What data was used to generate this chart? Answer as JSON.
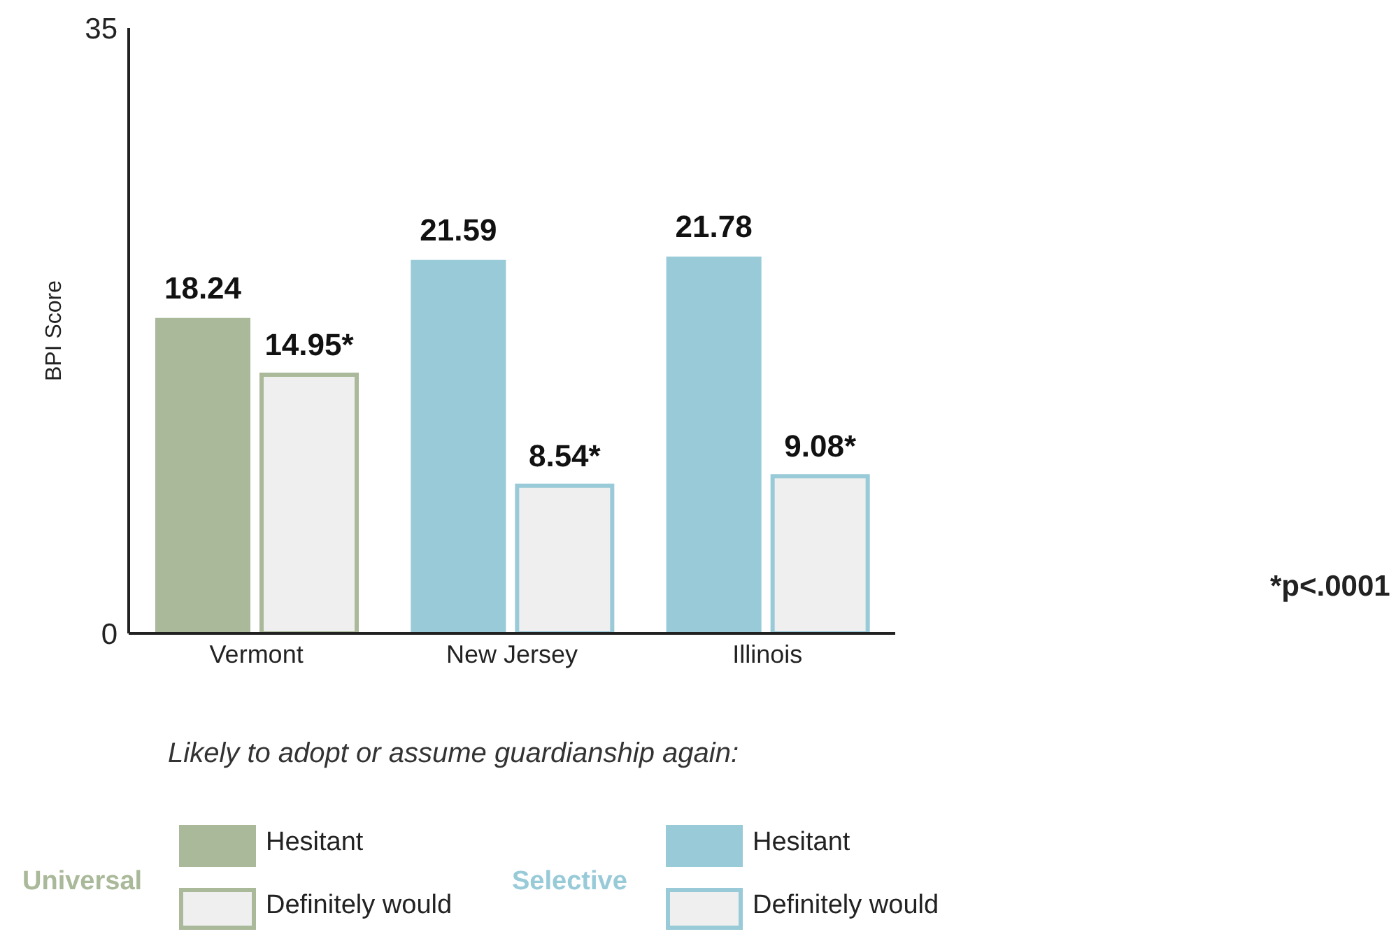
{
  "chart_data": {
    "type": "bar",
    "ylabel": "BPI Score",
    "legend_title": "Likely to adopt or assume guardianship again:",
    "categories": [
      "Vermont",
      "New Jersey",
      "Illinois"
    ],
    "series": [
      {
        "name": "Hesitant",
        "colors": [
          "#a9b999",
          "#98cad8",
          "#98cad8"
        ],
        "values": [
          18.24,
          21.59,
          21.78
        ],
        "value_labels": [
          "18.24",
          "21.59",
          "21.78"
        ]
      },
      {
        "name": "Definitely would",
        "colors": [
          "#efefef",
          "#efefef",
          "#efefef"
        ],
        "values": [
          14.95,
          8.54,
          9.08
        ],
        "value_labels": [
          "14.95*",
          "8.54*",
          "9.08*"
        ]
      }
    ],
    "ylim": [
      0,
      35
    ],
    "yticks": [
      0,
      35
    ],
    "legend": "bottom left",
    "annotations": [
      "Universal",
      "Selective",
      "*p<.0001"
    ]
  }
}
